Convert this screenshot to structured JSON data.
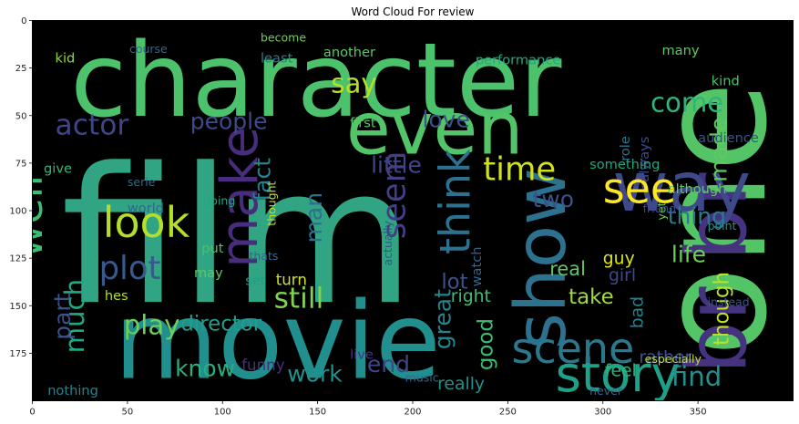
{
  "chart_data": {
    "type": "wordcloud",
    "title": "Word Cloud For review",
    "xlim": [
      0,
      400
    ],
    "ylim": [
      200,
      0
    ],
    "x_ticks": [
      0,
      50,
      100,
      150,
      200,
      250,
      300,
      350
    ],
    "y_ticks": [
      0,
      25,
      50,
      75,
      100,
      125,
      150,
      175
    ],
    "background": "#000000",
    "palette": {
      "green": "#57c363",
      "lime": "#c2d928",
      "teal": "#2a8f8b",
      "blue": "#3c5a8c",
      "purple": "#482575",
      "seafoam": "#36b07f"
    },
    "words": [
      {
        "text": "film",
        "x": 15,
        "y": 148,
        "size": 99,
        "color": "#31a484"
      },
      {
        "text": "one",
        "x": 385,
        "y": 177,
        "size": 78,
        "color": "#54c566",
        "rotate": -90
      },
      {
        "text": "character",
        "x": 20,
        "y": 50,
        "size": 54,
        "color": "#4cc26c"
      },
      {
        "text": "movie",
        "x": 43,
        "y": 188,
        "size": 56,
        "color": "#218f8d"
      },
      {
        "text": "even",
        "x": 165,
        "y": 70,
        "size": 38,
        "color": "#52c569"
      },
      {
        "text": "show",
        "x": 280,
        "y": 173,
        "size": 37,
        "color": "#2c718e",
        "rotate": -90
      },
      {
        "text": "br br",
        "x": 375,
        "y": 186,
        "size": 44,
        "color": "#46337f",
        "rotate": -90
      },
      {
        "text": "way",
        "x": 305,
        "y": 100,
        "size": 36,
        "color": "#3e4989"
      },
      {
        "text": "story",
        "x": 275,
        "y": 195,
        "size": 26,
        "color": "#1fa088"
      },
      {
        "text": "scene",
        "x": 252,
        "y": 180,
        "size": 22,
        "color": "#2a788e"
      },
      {
        "text": "make",
        "x": 118,
        "y": 130,
        "size": 27,
        "color": "#472d7b",
        "rotate": -90
      },
      {
        "text": "look",
        "x": 37,
        "y": 114,
        "size": 22,
        "color": "#b5de2b"
      },
      {
        "text": "well",
        "x": 5,
        "y": 125,
        "size": 22,
        "color": "#3dbc74",
        "rotate": -90
      },
      {
        "text": "see",
        "x": 300,
        "y": 96,
        "size": 22,
        "color": "#fde725"
      },
      {
        "text": "time",
        "x": 237,
        "y": 84,
        "size": 17,
        "color": "#d0e11c"
      },
      {
        "text": "think",
        "x": 230,
        "y": 123,
        "size": 22,
        "color": "#2c718e",
        "rotate": -90
      },
      {
        "text": "plot",
        "x": 35,
        "y": 136,
        "size": 17,
        "color": "#38598c"
      },
      {
        "text": "people",
        "x": 83,
        "y": 57,
        "size": 12,
        "color": "#3e4989"
      },
      {
        "text": "actor",
        "x": 12,
        "y": 60,
        "size": 15,
        "color": "#414487"
      },
      {
        "text": "life",
        "x": 336,
        "y": 127,
        "size": 12,
        "color": "#6ece58"
      },
      {
        "text": "made",
        "x": 365,
        "y": 85,
        "size": 12,
        "color": "#5ec962",
        "rotate": -90
      },
      {
        "text": "come",
        "x": 325,
        "y": 48,
        "size": 14,
        "color": "#2fb47c"
      },
      {
        "text": "say",
        "x": 157,
        "y": 38,
        "size": 14,
        "color": "#b8de29"
      },
      {
        "text": "love",
        "x": 205,
        "y": 56,
        "size": 12,
        "color": "#3b528b"
      },
      {
        "text": "little",
        "x": 178,
        "y": 80,
        "size": 12,
        "color": "#404688"
      },
      {
        "text": "seem",
        "x": 196,
        "y": 115,
        "size": 17,
        "color": "#433e85",
        "rotate": -90
      },
      {
        "text": "man",
        "x": 152,
        "y": 117,
        "size": 12,
        "color": "#2e6f8e",
        "rotate": -90
      },
      {
        "text": "fact",
        "x": 125,
        "y": 95,
        "size": 12,
        "color": "#26828e",
        "rotate": -90
      },
      {
        "text": "still",
        "x": 127,
        "y": 151,
        "size": 15,
        "color": "#7fd34e"
      },
      {
        "text": "play",
        "x": 48,
        "y": 165,
        "size": 14,
        "color": "#6ece58"
      },
      {
        "text": "director",
        "x": 78,
        "y": 163,
        "size": 11,
        "color": "#1f9e89"
      },
      {
        "text": "much",
        "x": 27,
        "y": 175,
        "size": 14,
        "color": "#22a785",
        "rotate": -90
      },
      {
        "text": "part",
        "x": 20,
        "y": 168,
        "size": 12,
        "color": "#3b528b",
        "rotate": -90
      },
      {
        "text": "know",
        "x": 75,
        "y": 187,
        "size": 12,
        "color": "#29af7f"
      },
      {
        "text": "work",
        "x": 134,
        "y": 190,
        "size": 12,
        "color": "#21918c"
      },
      {
        "text": "end",
        "x": 176,
        "y": 185,
        "size": 12,
        "color": "#404688"
      },
      {
        "text": "good",
        "x": 242,
        "y": 184,
        "size": 11,
        "color": "#3dbc74",
        "rotate": -90
      },
      {
        "text": "great",
        "x": 220,
        "y": 173,
        "size": 12,
        "color": "#25848e",
        "rotate": -90
      },
      {
        "text": "take",
        "x": 282,
        "y": 149,
        "size": 11,
        "color": "#a0da39"
      },
      {
        "text": "find",
        "x": 336,
        "y": 192,
        "size": 14,
        "color": "#21918c"
      },
      {
        "text": "though",
        "x": 366,
        "y": 171,
        "size": 11,
        "color": "#bddf26",
        "rotate": -90
      },
      {
        "text": "thing",
        "x": 334,
        "y": 107,
        "size": 12,
        "color": "#2a788e"
      },
      {
        "text": "two",
        "x": 263,
        "y": 98,
        "size": 12,
        "color": "#3b528b"
      },
      {
        "text": "lot",
        "x": 215,
        "y": 141,
        "size": 11,
        "color": "#3b528b"
      },
      {
        "text": "right",
        "x": 220,
        "y": 148,
        "size": 9,
        "color": "#3dbc74"
      },
      {
        "text": "real",
        "x": 272,
        "y": 134,
        "size": 10,
        "color": "#5ec962"
      },
      {
        "text": "girl",
        "x": 303,
        "y": 137,
        "size": 9,
        "color": "#3e4989"
      },
      {
        "text": "guy",
        "x": 300,
        "y": 128,
        "size": 9,
        "color": "#dde318"
      },
      {
        "text": "bad",
        "x": 321,
        "y": 162,
        "size": 9,
        "color": "#25848e",
        "rotate": -90
      },
      {
        "text": "feel",
        "x": 301,
        "y": 187,
        "size": 9,
        "color": "#2fb47c"
      },
      {
        "text": "really",
        "x": 213,
        "y": 194,
        "size": 9,
        "color": "#21918c"
      },
      {
        "text": "rather",
        "x": 319,
        "y": 180,
        "size": 9,
        "color": "#3b528b"
      },
      {
        "text": "especially",
        "x": 322,
        "y": 180,
        "size": 6,
        "color": "#c2df23"
      },
      {
        "text": "nothing",
        "x": 8,
        "y": 197,
        "size": 7,
        "color": "#26828e"
      },
      {
        "text": "funny",
        "x": 110,
        "y": 184,
        "size": 8,
        "color": "#472d7b"
      },
      {
        "text": "live",
        "x": 167,
        "y": 178,
        "size": 7,
        "color": "#46337f"
      },
      {
        "text": "hes",
        "x": 38,
        "y": 147,
        "size": 7,
        "color": "#b5de2b"
      },
      {
        "text": "turn",
        "x": 128,
        "y": 139,
        "size": 8,
        "color": "#d5e21a"
      },
      {
        "text": "set",
        "x": 112,
        "y": 139,
        "size": 7,
        "color": "#1f9e89"
      },
      {
        "text": "give",
        "x": 6,
        "y": 80,
        "size": 7,
        "color": "#35b779"
      },
      {
        "text": "serie",
        "x": 50,
        "y": 87,
        "size": 6,
        "color": "#31688e"
      },
      {
        "text": "world",
        "x": 50,
        "y": 101,
        "size": 7,
        "color": "#31688e"
      },
      {
        "text": "put",
        "x": 89,
        "y": 122,
        "size": 7,
        "color": "#4ac16d"
      },
      {
        "text": "going",
        "x": 90,
        "y": 97,
        "size": 6,
        "color": "#22a785"
      },
      {
        "text": "first",
        "x": 167,
        "y": 56,
        "size": 7,
        "color": "#5ec962"
      },
      {
        "text": "another",
        "x": 153,
        "y": 19,
        "size": 7,
        "color": "#5ec962"
      },
      {
        "text": "performance",
        "x": 233,
        "y": 23,
        "size": 7,
        "color": "#22a785"
      },
      {
        "text": "many",
        "x": 331,
        "y": 18,
        "size": 7,
        "color": "#5ec962"
      },
      {
        "text": "least",
        "x": 120,
        "y": 22,
        "size": 7,
        "color": "#26828e"
      },
      {
        "text": "become",
        "x": 120,
        "y": 11,
        "size": 6,
        "color": "#6ece58"
      },
      {
        "text": "course",
        "x": 51,
        "y": 17,
        "size": 6,
        "color": "#31688e"
      },
      {
        "text": "kid",
        "x": 12,
        "y": 22,
        "size": 7,
        "color": "#8fd744"
      },
      {
        "text": "audience",
        "x": 350,
        "y": 64,
        "size": 7,
        "color": "#3b528b"
      },
      {
        "text": "kind",
        "x": 357,
        "y": 34,
        "size": 7,
        "color": "#4ac16d"
      },
      {
        "text": "always",
        "x": 324,
        "y": 85,
        "size": 7,
        "color": "#3e4989",
        "rotate": -90
      },
      {
        "text": "yet",
        "x": 333,
        "y": 105,
        "size": 6,
        "color": "#6ece58",
        "rotate": -90
      },
      {
        "text": "although",
        "x": 334,
        "y": 91,
        "size": 7,
        "color": "#5ec962"
      },
      {
        "text": "friend",
        "x": 321,
        "y": 101,
        "size": 6,
        "color": "#3e4989"
      },
      {
        "text": "role",
        "x": 314,
        "y": 74,
        "size": 7,
        "color": "#2a788e",
        "rotate": -90
      },
      {
        "text": "something",
        "x": 293,
        "y": 78,
        "size": 7,
        "color": "#22a785"
      },
      {
        "text": "thats",
        "x": 114,
        "y": 126,
        "size": 6,
        "color": "#31688e"
      },
      {
        "text": "thought",
        "x": 128,
        "y": 108,
        "size": 6,
        "color": "#c2df23",
        "rotate": -90
      },
      {
        "text": "actually",
        "x": 189,
        "y": 129,
        "size": 6,
        "color": "#3b528b",
        "rotate": -90
      },
      {
        "text": "watch",
        "x": 236,
        "y": 140,
        "size": 7,
        "color": "#31688e",
        "rotate": -90
      },
      {
        "text": "instead",
        "x": 355,
        "y": 150,
        "size": 6,
        "color": "#3b528b"
      },
      {
        "text": "point",
        "x": 355,
        "y": 110,
        "size": 6,
        "color": "#21918c"
      },
      {
        "text": "never",
        "x": 293,
        "y": 197,
        "size": 6,
        "color": "#31688e"
      },
      {
        "text": "music",
        "x": 196,
        "y": 190,
        "size": 6,
        "color": "#31688e"
      },
      {
        "text": "may",
        "x": 85,
        "y": 135,
        "size": 7,
        "color": "#5ec962"
      }
    ]
  }
}
